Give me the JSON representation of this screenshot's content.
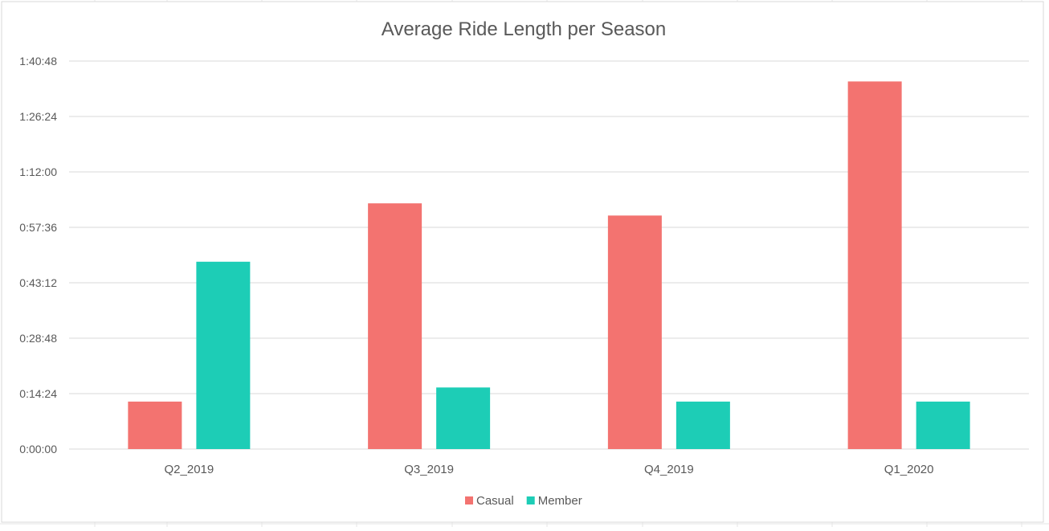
{
  "chart_data": {
    "type": "bar",
    "title": "Average Ride Length per Season",
    "xlabel": "",
    "ylabel": "",
    "categories": [
      "Q2_2019",
      "Q3_2019",
      "Q4_2019",
      "Q1_2020"
    ],
    "series": [
      {
        "name": "Casual",
        "color": "#F37370",
        "values": [
          "0:12:20",
          "1:03:50",
          "1:00:40",
          "1:35:30"
        ]
      },
      {
        "name": "Member",
        "color": "#1DCDB6",
        "values": [
          "0:48:40",
          "0:16:00",
          "0:12:20",
          "0:12:20"
        ]
      }
    ],
    "yticks": [
      "0:00:00",
      "0:14:24",
      "0:28:48",
      "0:43:12",
      "0:57:36",
      "1:12:00",
      "1:26:24",
      "1:40:48"
    ],
    "ylim": [
      "0:00:00",
      "1:40:48"
    ],
    "grid": true,
    "legend": "bottom"
  }
}
